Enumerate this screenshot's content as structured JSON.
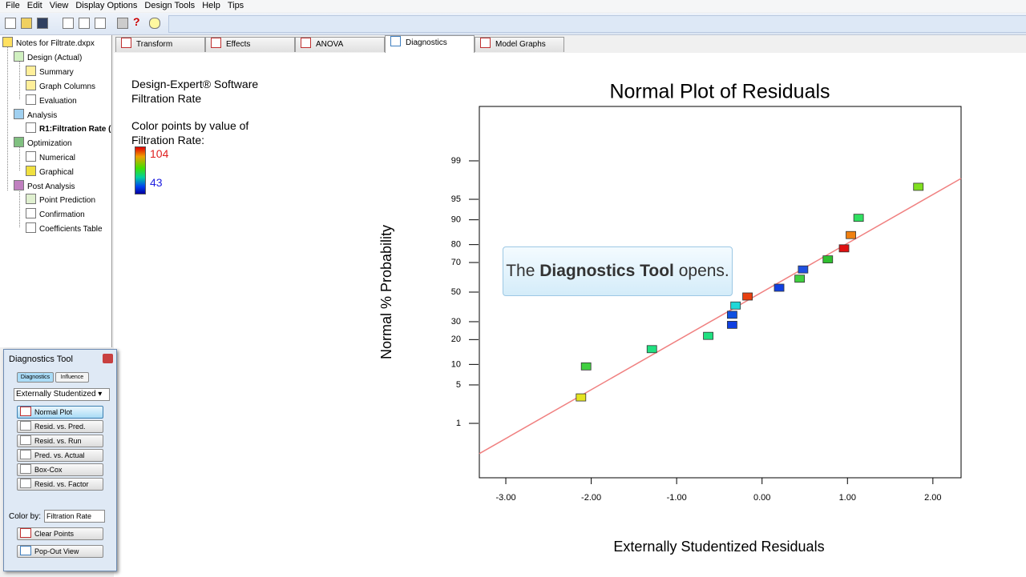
{
  "menu": [
    "File",
    "Edit",
    "View",
    "Display Options",
    "Design Tools",
    "Help",
    "Tips"
  ],
  "tree": {
    "root": "Notes for Filtrate.dxpx",
    "groups": [
      {
        "label": "Design (Actual)",
        "children": [
          "Summary",
          "Graph Columns",
          "Evaluation"
        ]
      },
      {
        "label": "Analysis",
        "children": [
          "R1:Filtration Rate ("
        ]
      },
      {
        "label": "Optimization",
        "children": [
          "Numerical",
          "Graphical"
        ]
      },
      {
        "label": "Post Analysis",
        "children": [
          "Point Prediction",
          "Confirmation",
          "Coefficients Table"
        ]
      }
    ]
  },
  "tabs": [
    {
      "label": "Transform",
      "active": false
    },
    {
      "label": "Effects",
      "active": false
    },
    {
      "label": "ANOVA",
      "active": false
    },
    {
      "label": "Diagnostics",
      "active": true
    },
    {
      "label": "Model Graphs",
      "active": false
    }
  ],
  "info": {
    "software": "Design-Expert® Software",
    "response": "Filtration Rate",
    "color_note": [
      "Color points by value of",
      "Filtration Rate:"
    ],
    "color_max": 104,
    "color_min": 43
  },
  "diagnostics_tool": {
    "title": "Diagnostics Tool",
    "modes": [
      "Diagnostics",
      "Influence"
    ],
    "residual_type": "Externally Studentized",
    "plots": [
      "Normal Plot",
      "Resid. vs. Pred.",
      "Resid. vs. Run",
      "Pred. vs. Actual",
      "Box-Cox",
      "Resid. vs. Factor"
    ],
    "color_by_label": "Color by:",
    "color_by_value": "Filtration Rate",
    "actions": [
      "Clear Points",
      "Pop-Out View"
    ]
  },
  "callout": {
    "before": "The",
    "bold": "Diagnostics Tool",
    "after": "opens."
  },
  "chart_data": {
    "type": "normal_probability",
    "title": "Normal Plot of Residuals",
    "xlabel": "Externally Studentized Residuals",
    "ylabel": "Normal % Probability",
    "yscale": "probit",
    "x": [
      -2.12,
      -2.06,
      -1.29,
      -0.63,
      -0.35,
      -0.35,
      -0.31,
      -0.17,
      0.2,
      0.44,
      0.48,
      0.77,
      0.96,
      1.04,
      1.13,
      1.83
    ],
    "values": [
      3.1,
      9.4,
      15.6,
      21.9,
      28.1,
      34.4,
      40.6,
      46.9,
      53.1,
      59.4,
      65.6,
      71.9,
      78.1,
      84.4,
      90.6,
      96.9
    ],
    "point_colors": [
      "#e4e420",
      "#40d040",
      "#20e080",
      "#20e080",
      "#1040e0",
      "#1050e0",
      "#20d8d8",
      "#e84010",
      "#1040e0",
      "#40d040",
      "#2050e0",
      "#30c030",
      "#e01010",
      "#f08010",
      "#30e060",
      "#80e020"
    ],
    "fit_line": {
      "x": [
        -3.31,
        2.33
      ],
      "values": [
        0.21,
        97.8
      ],
      "color": "#f08080"
    },
    "xlim": [
      -3.31,
      2.33
    ],
    "xticks": [
      {
        "value": -3,
        "label": "-3.00"
      },
      {
        "value": -2,
        "label": "-2.00"
      },
      {
        "value": -1,
        "label": "-1.00"
      },
      {
        "value": 0,
        "label": "0.00"
      },
      {
        "value": 1,
        "label": "1.00"
      },
      {
        "value": 2,
        "label": "2.00"
      }
    ],
    "ylim": [
      0.05,
      99.95
    ],
    "yticks": [
      1,
      5,
      10,
      20,
      30,
      50,
      70,
      80,
      90,
      95,
      99
    ]
  }
}
